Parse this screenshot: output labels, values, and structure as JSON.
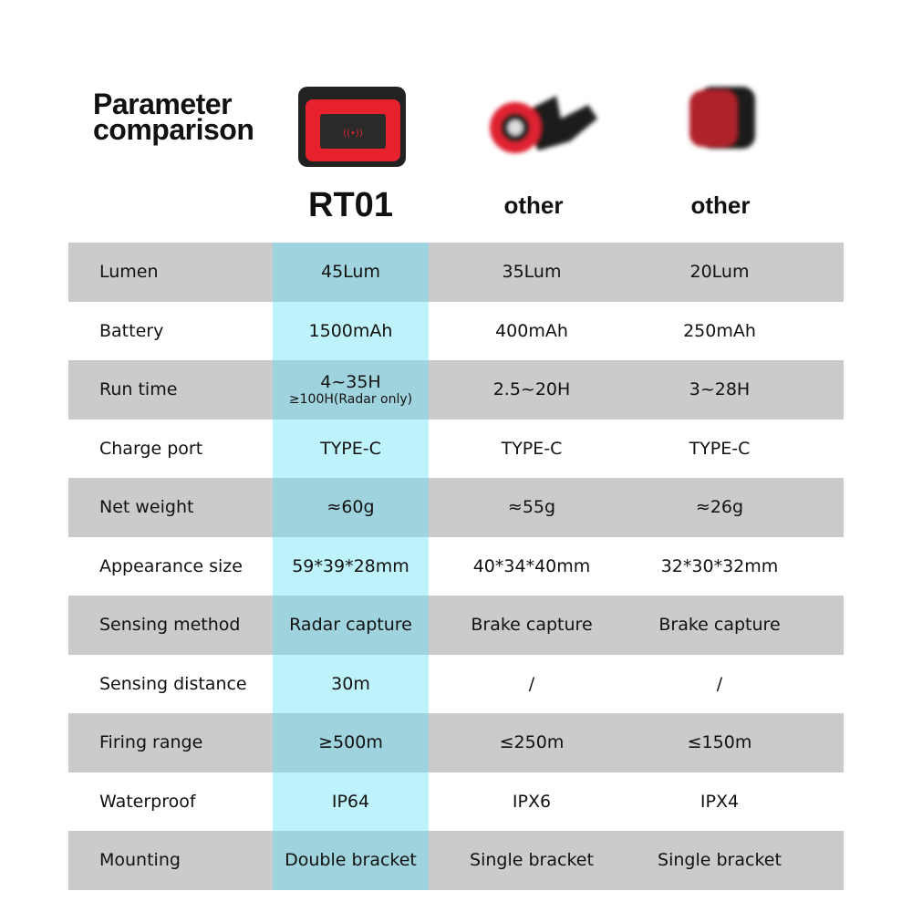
{
  "title_line1": "Parameter",
  "title_line2": "comparison",
  "products": [
    {
      "name": "RT01",
      "image": "rt01-radar-tail-light"
    },
    {
      "name": "other",
      "image": "round-tail-light"
    },
    {
      "name": "other",
      "image": "square-tail-light"
    }
  ],
  "colors": {
    "row_gray": "#cbcbcb",
    "highlight_gray_row": "#9fd3dd",
    "highlight_white_row": "#bff3fb",
    "light_red": "#e8222c"
  },
  "rows": [
    {
      "label": "Lumen",
      "v1": "45Lum",
      "v2": "35Lum",
      "v3": "20Lum"
    },
    {
      "label": "Battery",
      "v1": "1500mAh",
      "v2": "400mAh",
      "v3": "250mAh"
    },
    {
      "label": "Run time",
      "v1": "4~35H",
      "v1_sub": "≥100H(Radar only)",
      "v2": "2.5~20H",
      "v3": "3~28H"
    },
    {
      "label": "Charge port",
      "v1": "TYPE-C",
      "v2": "TYPE-C",
      "v3": "TYPE-C"
    },
    {
      "label": "Net weight",
      "v1": "≈60g",
      "v2": "≈55g",
      "v3": "≈26g"
    },
    {
      "label": "Appearance size",
      "v1": "59*39*28mm",
      "v2": "40*34*40mm",
      "v3": "32*30*32mm"
    },
    {
      "label": "Sensing method",
      "v1": "Radar capture",
      "v2": "Brake capture",
      "v3": "Brake capture"
    },
    {
      "label": "Sensing distance",
      "v1": "30m",
      "v2": "/",
      "v3": "/"
    },
    {
      "label": "Firing range",
      "v1": "≥500m",
      "v2": "≤250m",
      "v3": "≤150m"
    },
    {
      "label": "Waterproof",
      "v1": "IP64",
      "v2": "IPX6",
      "v3": "IPX4"
    },
    {
      "label": "Mounting",
      "v1": "Double bracket",
      "v2": "Single bracket",
      "v3": "Single bracket"
    }
  ]
}
